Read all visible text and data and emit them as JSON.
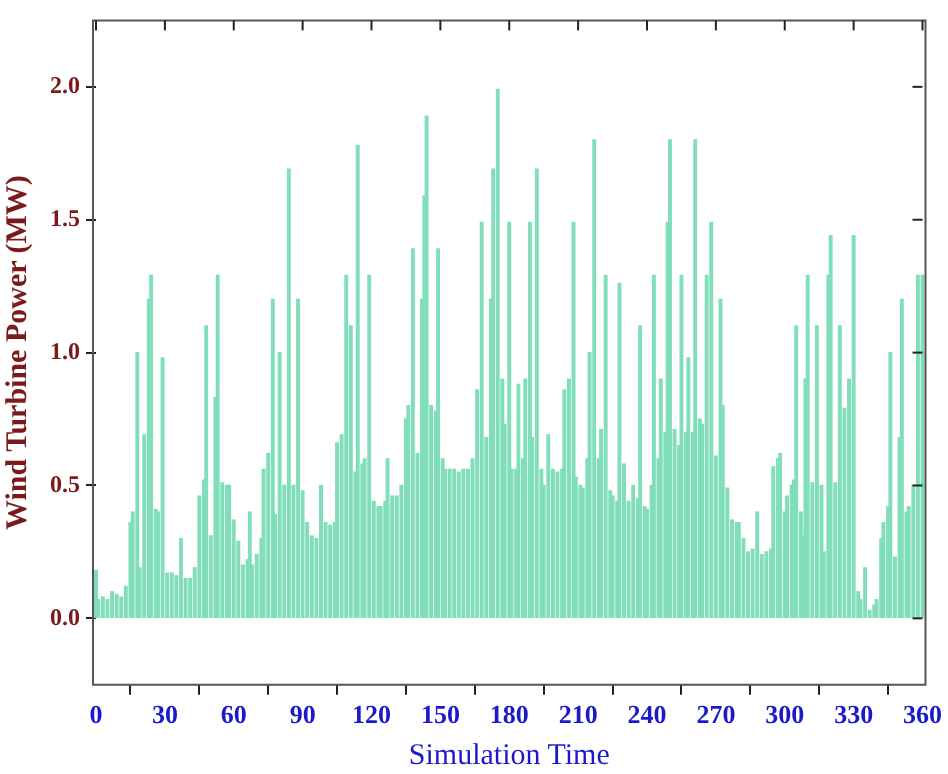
{
  "chart_data": {
    "type": "bar",
    "xlabel": "Simulation Time",
    "ylabel": "Wind Turbine Power (MW)",
    "color": "#80deb8",
    "x": [
      0,
      1,
      3,
      5,
      7,
      9,
      11,
      13,
      15,
      16,
      18,
      19,
      21,
      23,
      24,
      26,
      27,
      29,
      31,
      33,
      35,
      37,
      39,
      41,
      43,
      45,
      47,
      48,
      50,
      52,
      53,
      55,
      57,
      58,
      60,
      62,
      64,
      66,
      67,
      68,
      70,
      72,
      73,
      75,
      77,
      78,
      80,
      82,
      84,
      86,
      88,
      90,
      92,
      94,
      96,
      98,
      100,
      102,
      104,
      105,
      107,
      109,
      111,
      113,
      114,
      116,
      117,
      119,
      121,
      123,
      124,
      126,
      127,
      129,
      131,
      133,
      135,
      136,
      138,
      140,
      142,
      143,
      144,
      146,
      148,
      149,
      151,
      152,
      154,
      156,
      158,
      160,
      162,
      164,
      166,
      168,
      170,
      172,
      173,
      175,
      177,
      178,
      180,
      181,
      183,
      184,
      186,
      187,
      189,
      190,
      192,
      194,
      195,
      197,
      199,
      201,
      203,
      204,
      206,
      208,
      209,
      211,
      212,
      214,
      215,
      217,
      219,
      220,
      222,
      224,
      225,
      227,
      228,
      230,
      232,
      234,
      236,
      237,
      239,
      240,
      242,
      243,
      245,
      246,
      248,
      249,
      250,
      252,
      254,
      255,
      257,
      258,
      260,
      261,
      263,
      264,
      266,
      268,
      270,
      272,
      273,
      275,
      277,
      279,
      280,
      282,
      284,
      286,
      288,
      290,
      292,
      294,
      295,
      297,
      298,
      300,
      301,
      303,
      304,
      305,
      307,
      308,
      309,
      310,
      312,
      314,
      316,
      317,
      319,
      320,
      322,
      324,
      326,
      328,
      330,
      332,
      333,
      335,
      337,
      339,
      340,
      342,
      343,
      345,
      346,
      348,
      350,
      351,
      353,
      354,
      356,
      358,
      360
    ],
    "values": [
      0.18,
      0.07,
      0.08,
      0.07,
      0.1,
      0.09,
      0.08,
      0.12,
      0.36,
      0.4,
      1.0,
      0.19,
      0.69,
      1.2,
      1.29,
      0.41,
      0.4,
      0.98,
      0.17,
      0.17,
      0.16,
      0.3,
      0.15,
      0.15,
      0.19,
      0.46,
      0.52,
      1.1,
      0.31,
      0.83,
      1.29,
      0.51,
      0.5,
      0.5,
      0.37,
      0.29,
      0.2,
      0.22,
      0.4,
      0.2,
      0.24,
      0.3,
      0.56,
      0.62,
      1.2,
      0.39,
      1.0,
      0.5,
      1.69,
      0.5,
      1.2,
      0.48,
      0.36,
      0.31,
      0.3,
      0.5,
      0.36,
      0.35,
      0.36,
      0.66,
      0.69,
      1.29,
      1.1,
      0.55,
      1.78,
      0.58,
      0.6,
      1.29,
      0.44,
      0.42,
      0.42,
      0.44,
      0.6,
      0.46,
      0.46,
      0.5,
      0.75,
      0.8,
      1.39,
      0.62,
      1.2,
      1.59,
      1.89,
      0.8,
      0.78,
      1.39,
      0.6,
      0.56,
      0.56,
      0.56,
      0.55,
      0.56,
      0.56,
      0.6,
      0.86,
      1.49,
      0.68,
      1.2,
      1.69,
      1.99,
      0.9,
      0.73,
      1.49,
      0.56,
      0.56,
      0.88,
      0.6,
      0.9,
      1.49,
      0.68,
      1.69,
      0.56,
      0.5,
      0.69,
      0.56,
      0.55,
      0.56,
      0.86,
      0.9,
      1.49,
      0.53,
      0.5,
      0.49,
      0.6,
      1.0,
      1.8,
      0.6,
      0.71,
      1.29,
      0.48,
      0.46,
      0.44,
      1.26,
      0.58,
      0.44,
      0.5,
      0.45,
      1.1,
      0.42,
      0.41,
      0.5,
      1.29,
      0.6,
      0.9,
      0.7,
      1.49,
      1.8,
      0.71,
      0.65,
      1.29,
      0.7,
      0.98,
      0.7,
      1.8,
      0.75,
      0.73,
      1.29,
      1.49,
      0.61,
      1.2,
      0.8,
      0.49,
      0.37,
      0.36,
      0.36,
      0.3,
      0.25,
      0.26,
      0.4,
      0.24,
      0.25,
      0.26,
      0.57,
      0.6,
      0.62,
      0.4,
      0.46,
      0.5,
      0.52,
      1.1,
      0.4,
      0.31,
      0.9,
      1.29,
      0.51,
      1.1,
      0.5,
      0.25,
      1.29,
      1.44,
      0.51,
      1.1,
      0.79,
      0.9,
      1.44,
      0.1,
      0.07,
      0.19,
      0.03,
      0.05,
      0.07,
      0.3,
      0.36,
      0.42,
      1.0,
      0.23,
      0.68,
      1.2,
      0.4,
      0.42,
      0.5,
      1.29,
      1.29
    ],
    "xlim": [
      0,
      360
    ],
    "xticks": [
      0,
      30,
      60,
      90,
      120,
      150,
      180,
      210,
      240,
      270,
      300,
      330,
      360
    ],
    "ylim": [
      -0.25,
      2.25
    ],
    "yticks": [
      {
        "value": 0,
        "label": "0.0"
      },
      {
        "value": 0.5,
        "label": "0.5"
      },
      {
        "value": 1,
        "label": "1.0"
      },
      {
        "value": 1.5,
        "label": "1.5"
      },
      {
        "value": 2,
        "label": "2.0"
      }
    ],
    "grid": false,
    "legend": false
  }
}
